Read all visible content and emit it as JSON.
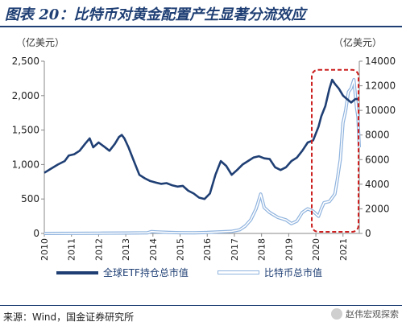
{
  "header": {
    "title": "图表 20：比特币对黄金配置产生显著分流效应"
  },
  "footer": {
    "source": "来源：Wind，国金证券研究所",
    "watermark": "赵伟宏观探索"
  },
  "chart_data": {
    "type": "line",
    "left_axis_unit": "（亿美元）",
    "right_axis_unit": "（亿美元）",
    "x_range": [
      2010,
      2021.6
    ],
    "x_ticks": [
      "2010",
      "2011",
      "2012",
      "2013",
      "2014",
      "2015",
      "2016",
      "2017",
      "2018",
      "2019",
      "2020",
      "2021"
    ],
    "y_left": {
      "range": [
        0,
        2500
      ],
      "ticks": [
        "0",
        "500",
        "1,000",
        "1,500",
        "2,000",
        "2,500"
      ]
    },
    "y_right": {
      "range": [
        0,
        14000
      ],
      "ticks": [
        "0",
        "2000",
        "4000",
        "6000",
        "8000",
        "10000",
        "12000",
        "14000"
      ]
    },
    "grid": false,
    "legend_position": "bottom",
    "colors": {
      "gold": "#1f3f74",
      "btc": "#8fb3de",
      "highlight": "#cc1f1f",
      "axis": "#888888"
    },
    "highlight_box": {
      "x_from": 2019.85,
      "x_to": 2021.65,
      "y_right_from": 0,
      "y_right_to": 13300
    },
    "series": [
      {
        "name": "全球ETF持仓总市值",
        "axis": "left",
        "style": "solid",
        "x": [
          2010.0,
          2010.25,
          2010.5,
          2010.75,
          2010.9,
          2011.1,
          2011.3,
          2011.5,
          2011.67,
          2011.8,
          2012.0,
          2012.2,
          2012.4,
          2012.6,
          2012.75,
          2012.85,
          2012.95,
          2013.1,
          2013.3,
          2013.5,
          2013.7,
          2013.9,
          2014.1,
          2014.3,
          2014.5,
          2014.7,
          2014.9,
          2015.1,
          2015.3,
          2015.5,
          2015.7,
          2015.9,
          2016.1,
          2016.3,
          2016.5,
          2016.7,
          2016.9,
          2017.1,
          2017.3,
          2017.5,
          2017.7,
          2017.9,
          2018.1,
          2018.3,
          2018.5,
          2018.7,
          2018.9,
          2019.1,
          2019.3,
          2019.5,
          2019.7,
          2019.9,
          2020.1,
          2020.2,
          2020.35,
          2020.5,
          2020.6,
          2020.7,
          2020.85,
          2021.0,
          2021.15,
          2021.3,
          2021.45,
          2021.6
        ],
        "values": [
          880,
          940,
          1000,
          1050,
          1130,
          1150,
          1200,
          1300,
          1380,
          1250,
          1320,
          1260,
          1200,
          1300,
          1400,
          1430,
          1380,
          1250,
          1050,
          850,
          800,
          760,
          740,
          720,
          730,
          700,
          680,
          690,
          620,
          580,
          520,
          500,
          580,
          850,
          1050,
          980,
          850,
          920,
          1000,
          1050,
          1100,
          1120,
          1090,
          1080,
          960,
          920,
          960,
          1050,
          1100,
          1200,
          1320,
          1350,
          1550,
          1700,
          1850,
          2100,
          2230,
          2170,
          2100,
          2000,
          1950,
          1900,
          1950,
          1950
        ]
      },
      {
        "name": "比特币总市值",
        "axis": "right",
        "style": "outline",
        "x": [
          2010.0,
          2011.0,
          2012.0,
          2013.0,
          2013.8,
          2013.95,
          2014.2,
          2014.6,
          2015.0,
          2015.5,
          2016.0,
          2016.5,
          2016.9,
          2017.2,
          2017.4,
          2017.6,
          2017.8,
          2017.97,
          2018.1,
          2018.3,
          2018.6,
          2018.9,
          2019.1,
          2019.3,
          2019.5,
          2019.7,
          2019.9,
          2020.1,
          2020.2,
          2020.3,
          2020.5,
          2020.7,
          2020.8,
          2020.9,
          2021.0,
          2021.1,
          2021.2,
          2021.3,
          2021.4,
          2021.5,
          2021.55,
          2021.6
        ],
        "values": [
          0,
          5,
          20,
          30,
          50,
          150,
          120,
          80,
          60,
          50,
          80,
          130,
          170,
          300,
          600,
          1100,
          2000,
          3200,
          2100,
          1700,
          1300,
          1100,
          800,
          1000,
          1700,
          2000,
          1800,
          1400,
          2000,
          2500,
          2600,
          3200,
          4500,
          6000,
          9000,
          10000,
          11500,
          11800,
          12500,
          10200,
          9500,
          7000
        ]
      }
    ]
  }
}
